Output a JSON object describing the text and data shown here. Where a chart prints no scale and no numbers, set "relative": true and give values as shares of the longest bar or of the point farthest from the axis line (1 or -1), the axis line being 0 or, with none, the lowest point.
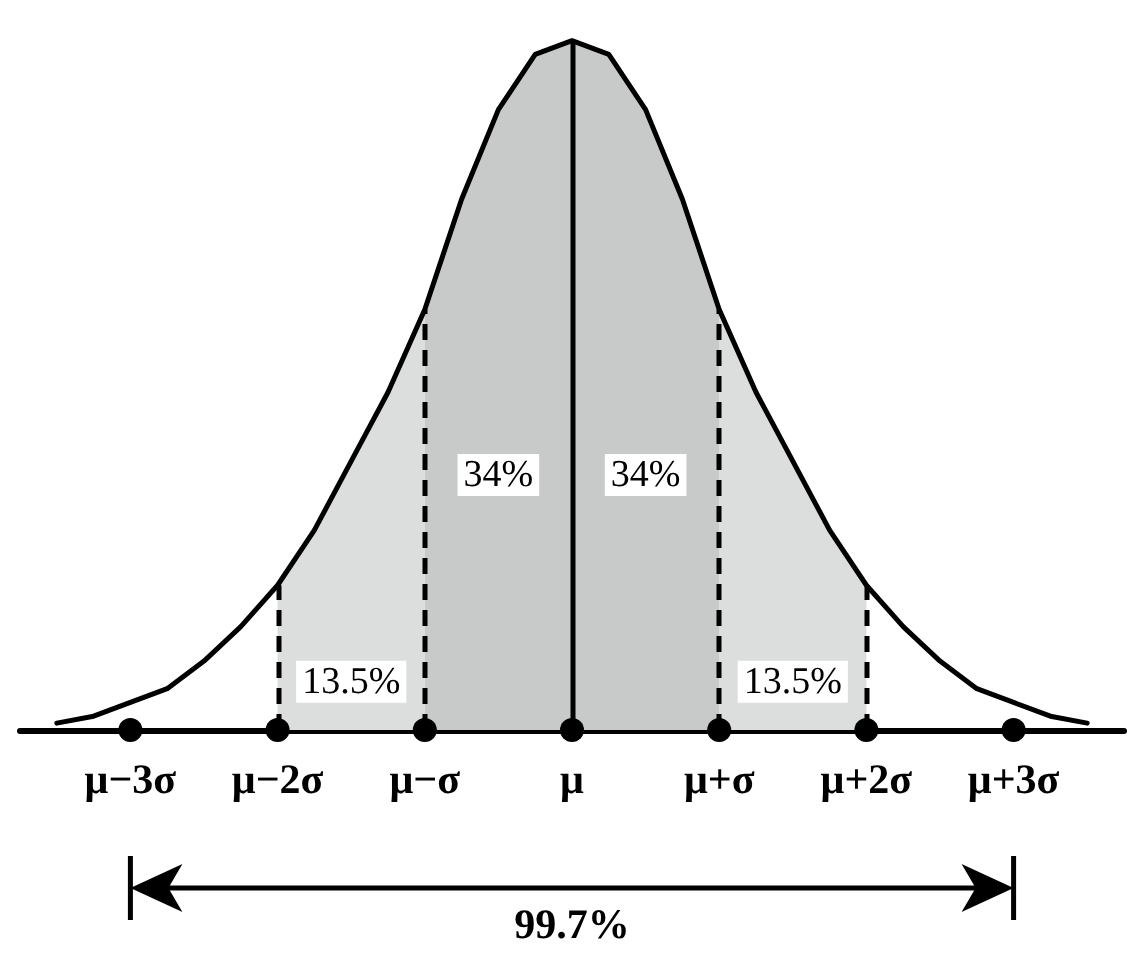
{
  "chart_data": {
    "type": "line",
    "relative": true,
    "categories": [
      null,
      null,
      null,
      "μ−3σ",
      null,
      null,
      null,
      "μ−2σ",
      null,
      null,
      null,
      "μ−σ",
      null,
      null,
      null,
      "μ",
      null,
      null,
      null,
      "μ+σ",
      null,
      null,
      null,
      "μ+2σ",
      null,
      null,
      null,
      "μ+3σ",
      null,
      null,
      null
    ],
    "series": [
      {
        "type": "area",
        "color": "#dcdddd",
        "values": [
          null,
          null,
          null,
          null,
          null,
          null,
          null,
          0.21,
          0.29,
          0.39,
          0.49,
          0.61,
          null,
          null,
          null,
          null,
          null,
          null,
          null,
          0.61,
          0.49,
          0.39,
          0.29,
          0.21,
          null,
          null,
          null,
          null,
          null,
          null,
          null
        ]
      },
      {
        "type": "area",
        "color": "#c8c9c9",
        "values": [
          null,
          null,
          null,
          null,
          null,
          null,
          null,
          null,
          null,
          null,
          null,
          0.61,
          0.77,
          0.9,
          0.98,
          1,
          0.98,
          0.9,
          0.77,
          0.61,
          null,
          null,
          null,
          null,
          null,
          null,
          null,
          null,
          null,
          null,
          null
        ]
      },
      {
        "color": "#000000",
        "values": [
          null,
          0.01,
          0.02,
          0.04,
          0.06,
          0.1,
          0.15,
          0.21,
          0.29,
          0.39,
          0.49,
          0.61,
          0.77,
          0.9,
          0.98,
          1,
          0.98,
          0.9,
          0.77,
          0.61,
          0.49,
          0.39,
          0.29,
          0.21,
          0.15,
          0.1,
          0.06,
          0.04,
          0.02,
          0.01,
          null
        ]
      }
    ],
    "ref_lines": [
      {
        "axis": "x",
        "value": "μ−2σ",
        "line_style": "dashed",
        "color": "#000000"
      },
      {
        "axis": "x",
        "value": "μ−σ",
        "line_style": "dashed",
        "color": "#000000"
      },
      {
        "axis": "x",
        "value": "μ",
        "line_style": "solid",
        "color": "#000000"
      },
      {
        "axis": "x",
        "value": "μ+σ",
        "line_style": "dashed",
        "color": "#000000"
      },
      {
        "axis": "x",
        "value": "μ+2σ",
        "line_style": "dashed",
        "color": "#000000"
      }
    ],
    "annotations": [
      "34%",
      "34%",
      "13.5%",
      "13.5%",
      "99.7%"
    ],
    "marker": "none",
    "line_style": "solid"
  }
}
